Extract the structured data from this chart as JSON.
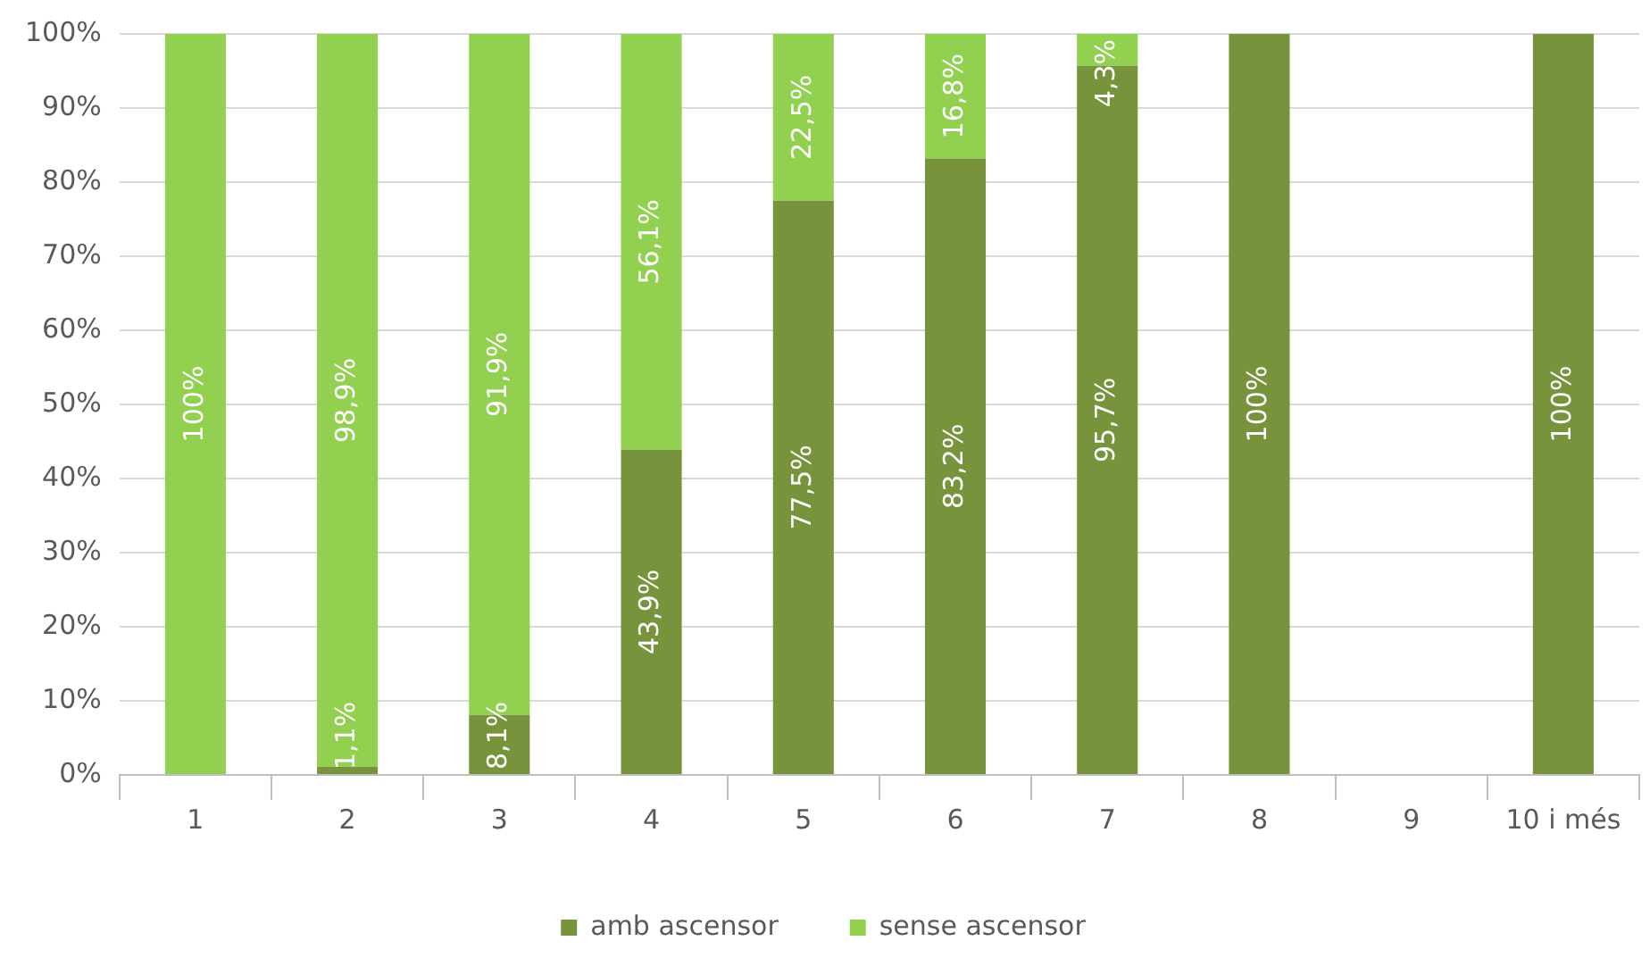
{
  "chart_data": {
    "type": "bar",
    "stacked": true,
    "categories": [
      "1",
      "2",
      "3",
      "4",
      "5",
      "6",
      "7",
      "8",
      "9",
      "10 i més"
    ],
    "series": [
      {
        "name": "amb ascensor",
        "color": "#77933c",
        "values": [
          0,
          1.1,
          8.1,
          43.9,
          77.5,
          83.2,
          95.7,
          100,
          null,
          100
        ],
        "value_labels": [
          null,
          "1,1%",
          "8,1%",
          "43,9%",
          "77,5%",
          "83,2%",
          "95,7%",
          "100%",
          null,
          "100%"
        ]
      },
      {
        "name": "sense ascensor",
        "color": "#92d050",
        "values": [
          100,
          98.9,
          91.9,
          56.1,
          22.5,
          16.8,
          4.3,
          0,
          null,
          0
        ],
        "value_labels": [
          "100%",
          "98,9%",
          "91,9%",
          "56,1%",
          "22,5%",
          "16,8%",
          "4,3%",
          null,
          null,
          null
        ]
      }
    ],
    "ylim": [
      0,
      100
    ],
    "yticks": [
      {
        "value": 0,
        "label": "0%"
      },
      {
        "value": 10,
        "label": "10%"
      },
      {
        "value": 20,
        "label": "20%"
      },
      {
        "value": 30,
        "label": "30%"
      },
      {
        "value": 40,
        "label": "40%"
      },
      {
        "value": 50,
        "label": "50%"
      },
      {
        "value": 60,
        "label": "60%"
      },
      {
        "value": 70,
        "label": "70%"
      },
      {
        "value": 80,
        "label": "80%"
      },
      {
        "value": 90,
        "label": "90%"
      },
      {
        "value": 100,
        "label": "100%"
      }
    ],
    "grid": "y",
    "legend": "bottom"
  }
}
